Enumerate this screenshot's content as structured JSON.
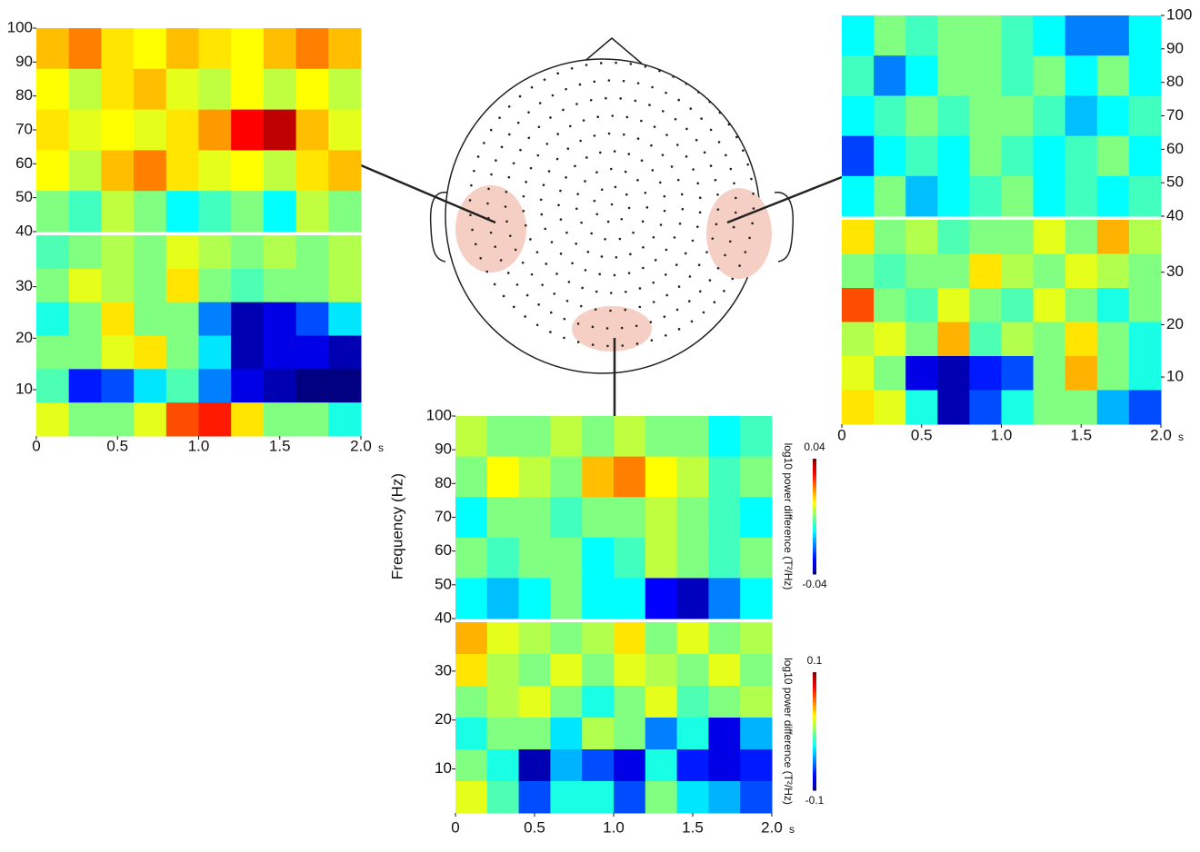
{
  "chart_data": [
    {
      "type": "heatmap",
      "xlim": [
        0,
        2
      ],
      "xticks": [
        0,
        0.5,
        {
          "value": 1,
          "label": "1.0"
        },
        1.5,
        {
          "value": 2,
          "label": "2.0"
        }
      ],
      "xlabel": "s",
      "bands": [
        {
          "ylim": [
            40,
            100
          ],
          "yticks": [
            40,
            50,
            60,
            70,
            80,
            90,
            100
          ],
          "clim": [
            -0.04,
            0.04
          ],
          "values": [
            [
              0.015,
              0.02,
              0.012,
              0.01,
              0.015,
              0.012,
              0.01,
              0.015,
              0.02,
              0.015
            ],
            [
              0.01,
              0.005,
              0.012,
              0.015,
              0.008,
              0.005,
              0.01,
              0.005,
              0.01,
              0.005
            ],
            [
              0.012,
              0.008,
              0.01,
              0.008,
              0.012,
              0.018,
              0.03,
              0.035,
              0.015,
              0.008
            ],
            [
              0.01,
              0.005,
              0.015,
              0.02,
              0.012,
              0.008,
              0.01,
              0.005,
              0.012,
              0.015
            ],
            [
              0,
              -0.005,
              0.005,
              0,
              -0.01,
              -0.005,
              0,
              -0.01,
              0.005,
              0
            ]
          ]
        },
        {
          "ylim": [
            1,
            40
          ],
          "yticks": [
            10,
            20,
            30
          ],
          "clim": [
            -0.1,
            0.1
          ],
          "values": [
            [
              -0.01,
              0,
              0.01,
              0,
              0.02,
              0.01,
              0,
              0.01,
              0,
              0.01
            ],
            [
              0,
              0.02,
              0.01,
              0,
              0.03,
              0,
              -0.01,
              0,
              0,
              0.01
            ],
            [
              -0.02,
              0,
              0.03,
              0,
              0,
              -0.05,
              -0.09,
              -0.08,
              -0.06,
              -0.03
            ],
            [
              0,
              0,
              0.02,
              0.03,
              0,
              -0.03,
              -0.09,
              -0.08,
              -0.08,
              -0.09
            ],
            [
              -0.01,
              -0.07,
              -0.06,
              -0.03,
              -0.01,
              -0.05,
              -0.08,
              -0.09,
              -0.1,
              -0.1
            ],
            [
              0.02,
              0,
              0,
              0.02,
              0.06,
              0.07,
              0.03,
              0,
              0,
              -0.02
            ]
          ]
        }
      ]
    },
    {
      "type": "heatmap",
      "xlim": [
        0,
        2
      ],
      "xticks": [
        0,
        0.5,
        {
          "value": 1,
          "label": "1.0"
        },
        1.5,
        {
          "value": 2,
          "label": "2.0"
        }
      ],
      "xlabel": "s",
      "bands": [
        {
          "ylim": [
            40,
            100
          ],
          "yticks": [
            40,
            50,
            60,
            70,
            80,
            90,
            100
          ],
          "clim": [
            -0.04,
            0.04
          ],
          "values": [
            [
              -0.01,
              0,
              -0.005,
              0,
              0,
              -0.005,
              -0.01,
              -0.02,
              -0.02,
              -0.01
            ],
            [
              -0.005,
              -0.02,
              -0.01,
              0,
              0,
              -0.005,
              0,
              -0.01,
              0,
              -0.01
            ],
            [
              -0.01,
              -0.005,
              0,
              -0.005,
              0,
              0,
              -0.005,
              -0.015,
              -0.01,
              -0.005
            ],
            [
              -0.025,
              -0.01,
              -0.005,
              -0.01,
              0,
              -0.005,
              -0.01,
              -0.005,
              0,
              -0.01
            ],
            [
              -0.01,
              0,
              -0.015,
              -0.01,
              -0.005,
              0,
              -0.01,
              -0.005,
              -0.01,
              -0.005
            ]
          ]
        },
        {
          "ylim": [
            1,
            40
          ],
          "yticks": [
            10,
            20,
            30
          ],
          "clim": [
            -0.1,
            0.1
          ],
          "values": [
            [
              0.03,
              0,
              0.01,
              -0.01,
              0,
              0,
              0.02,
              0,
              0.04,
              0.01
            ],
            [
              0,
              -0.01,
              0,
              0,
              0.03,
              0.01,
              0,
              0.02,
              0.01,
              0
            ],
            [
              0.06,
              0,
              -0.01,
              0.02,
              0,
              -0.01,
              0.02,
              0,
              -0.02,
              0
            ],
            [
              0.01,
              0.02,
              0,
              0.04,
              -0.01,
              0.01,
              0,
              0.03,
              0,
              -0.02
            ],
            [
              0.02,
              0,
              -0.08,
              -0.09,
              -0.07,
              -0.06,
              0,
              0.04,
              0,
              -0.02
            ],
            [
              0.03,
              0.02,
              -0.02,
              -0.09,
              -0.06,
              -0.02,
              0,
              0,
              -0.04,
              -0.06
            ]
          ]
        }
      ]
    },
    {
      "type": "heatmap",
      "xlim": [
        0,
        2
      ],
      "xticks": [
        0,
        0.5,
        {
          "value": 1,
          "label": "1.0"
        },
        1.5,
        {
          "value": 2,
          "label": "2.0"
        }
      ],
      "xlabel": "s",
      "ylabel": "Frequency (Hz)",
      "bands": [
        {
          "ylim": [
            40,
            100
          ],
          "yticks": [
            40,
            50,
            60,
            70,
            80,
            90,
            100
          ],
          "clim": [
            -0.04,
            0.04
          ],
          "colorbar": {
            "label": "log10 power difference (T²/Hz)",
            "ticks": [
              0.04,
              -0.04
            ]
          },
          "values": [
            [
              0.005,
              0,
              0,
              0.005,
              0,
              0.005,
              0,
              0,
              -0.01,
              -0.005
            ],
            [
              0,
              0.01,
              0.005,
              0,
              0.015,
              0.02,
              0.01,
              0.005,
              -0.005,
              0
            ],
            [
              -0.01,
              0,
              0,
              -0.005,
              0,
              0,
              0.005,
              0,
              -0.005,
              -0.01
            ],
            [
              0,
              -0.005,
              0,
              0,
              -0.01,
              -0.005,
              0.005,
              0,
              -0.005,
              0
            ],
            [
              -0.01,
              -0.015,
              -0.01,
              0,
              -0.01,
              -0.01,
              -0.03,
              -0.035,
              -0.02,
              -0.01
            ]
          ]
        },
        {
          "ylim": [
            1,
            40
          ],
          "yticks": [
            10,
            20,
            30
          ],
          "clim": [
            -0.1,
            0.1
          ],
          "colorbar": {
            "label": "log10 power difference (T²/Hz)",
            "ticks": [
              0.1,
              -0.1
            ]
          },
          "values": [
            [
              0.04,
              0.02,
              0.01,
              0,
              0.01,
              0.03,
              0,
              0.02,
              0,
              0.01
            ],
            [
              0.03,
              0.01,
              0,
              0.02,
              0,
              0.02,
              0.01,
              0,
              0.02,
              0
            ],
            [
              0,
              0.01,
              0.02,
              0,
              -0.02,
              0,
              0.02,
              -0.01,
              0,
              0.01
            ],
            [
              -0.02,
              0,
              0,
              -0.03,
              0.01,
              0,
              -0.05,
              -0.02,
              -0.08,
              -0.04
            ],
            [
              0,
              -0.02,
              -0.09,
              -0.04,
              -0.06,
              -0.08,
              -0.02,
              -0.07,
              -0.08,
              -0.07
            ],
            [
              0.02,
              -0.01,
              -0.06,
              -0.02,
              -0.02,
              -0.06,
              0,
              -0.03,
              -0.04,
              -0.06
            ]
          ]
        }
      ]
    }
  ]
}
